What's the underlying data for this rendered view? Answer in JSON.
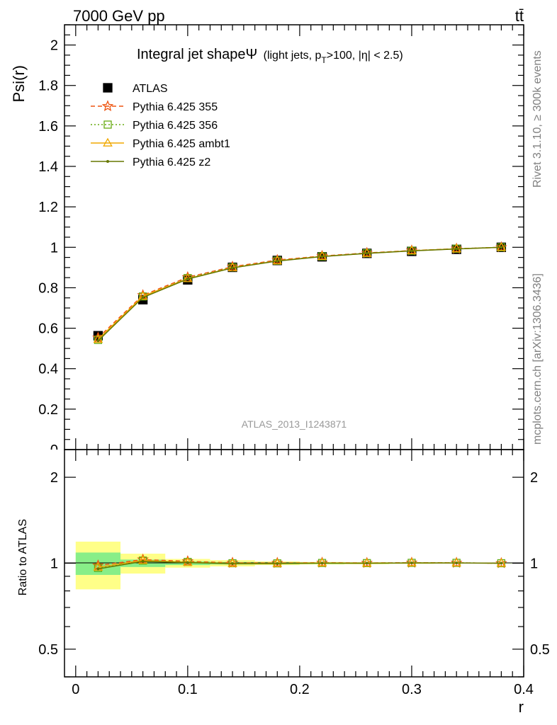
{
  "header": {
    "left": "7000 GeV pp",
    "right": "tt̄"
  },
  "side": {
    "rivet": "Rivet 3.1.10, ≥ 300k events",
    "mcplots": "mcplots.cern.ch [arXiv:1306.3436]"
  },
  "colors": {
    "data": "#000000",
    "p355": "#ee5511",
    "p356": "#66aa11",
    "ambt1": "#f0a800",
    "z2": "#667700",
    "band_inner": "#88ee88",
    "band_outer": "#ffff88"
  },
  "chart_data": {
    "type": "line",
    "title_main": "Integral jet shapeΨ",
    "title_sub": "(light jets, p",
    "title_sub_T": "T",
    "title_sub_rest": ">100, |η| < 2.5)",
    "xlabel": "r",
    "ylabel": "Psi(r)",
    "ratio_ylabel": "Ratio to ATLAS",
    "watermark": "ATLAS_2013_I1243871",
    "xlim": [
      -0.01,
      0.4
    ],
    "ylim": [
      0,
      2.1
    ],
    "ratio_ylim": [
      0.4,
      2.5
    ],
    "x_ticks": [
      "0",
      "0.1",
      "0.2",
      "0.3",
      "0.4"
    ],
    "y_ticks": [
      "0.2",
      "0.4",
      "0.6",
      "0.8",
      "1",
      "1.2",
      "1.4",
      "1.6",
      "1.8",
      "2"
    ],
    "ratio_ticks": [
      "0.5",
      "1",
      "2"
    ],
    "x": [
      0.02,
      0.06,
      0.1,
      0.14,
      0.18,
      0.22,
      0.26,
      0.3,
      0.34,
      0.38
    ],
    "bin_edges": [
      0.0,
      0.04,
      0.08,
      0.12,
      0.16,
      0.2,
      0.24,
      0.28,
      0.32,
      0.36,
      0.4
    ],
    "data": {
      "name": "ATLAS",
      "values": [
        0.563,
        0.741,
        0.839,
        0.901,
        0.935,
        0.953,
        0.97,
        0.98,
        0.99,
        1.0
      ],
      "rel_err_inner": [
        0.09,
        0.03,
        0.015,
        0.01,
        0.008,
        0.006,
        0.004,
        0.003,
        0.002,
        0.001
      ],
      "rel_err_outer": [
        0.19,
        0.08,
        0.035,
        0.025,
        0.015,
        0.01,
        0.008,
        0.005,
        0.003,
        0.002
      ]
    },
    "series": [
      {
        "name": "Pythia 6.425 355",
        "values": [
          0.553,
          0.763,
          0.852,
          0.904,
          0.937,
          0.957,
          0.972,
          0.984,
          0.993,
          1.0
        ]
      },
      {
        "name": "Pythia 6.425 356",
        "values": [
          0.542,
          0.757,
          0.848,
          0.901,
          0.934,
          0.955,
          0.971,
          0.983,
          0.993,
          1.0
        ]
      },
      {
        "name": "Pythia 6.425 ambt1",
        "values": [
          0.545,
          0.758,
          0.845,
          0.899,
          0.933,
          0.955,
          0.97,
          0.983,
          0.992,
          1.0
        ]
      },
      {
        "name": "Pythia 6.425 z2",
        "values": [
          0.538,
          0.752,
          0.843,
          0.898,
          0.932,
          0.954,
          0.97,
          0.982,
          0.992,
          1.0
        ]
      }
    ]
  }
}
